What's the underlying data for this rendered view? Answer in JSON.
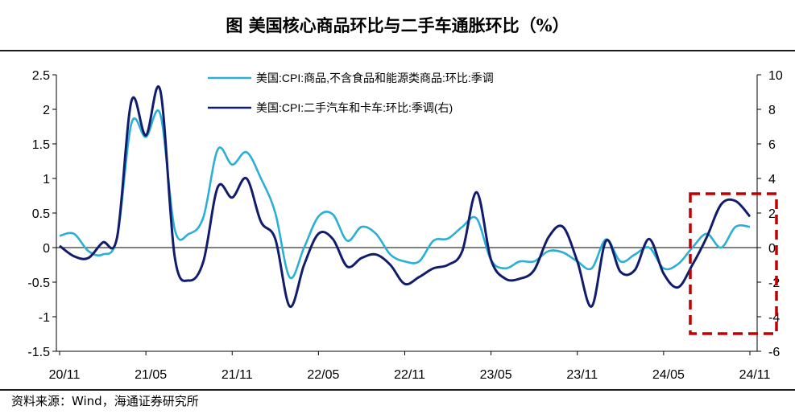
{
  "title": "图  美国核心商品环比与二手车通胀环比（%）",
  "source": "资料来源：Wind，海通证券研究所",
  "chart_data": {
    "type": "line",
    "title": "图  美国核心商品环比与二手车通胀环比（%）",
    "x_ticks": [
      "20/11",
      "21/05",
      "21/11",
      "22/05",
      "22/11",
      "23/05",
      "23/11",
      "24/05",
      "24/11"
    ],
    "y_left": {
      "ylim": [
        -1.5,
        2.5
      ],
      "ticks": [
        "2.5",
        "2",
        "1.5",
        "1",
        "0.5",
        "0",
        "-0.5",
        "-1",
        "-1.5"
      ]
    },
    "y_right": {
      "ylim": [
        -6,
        10
      ],
      "ticks": [
        "10",
        "8",
        "6",
        "4",
        "2",
        "0",
        "-2",
        "-4",
        "-6"
      ]
    },
    "grid": false,
    "legend_position": "top-center",
    "series": [
      {
        "name": "美国:CPI:商品,不含食品和能源类商品:环比:季调",
        "axis": "left",
        "color": "#2bafd6",
        "x": [
          "2020-11",
          "2020-12",
          "2021-01",
          "2021-02",
          "2021-03",
          "2021-04",
          "2021-05",
          "2021-06",
          "2021-07",
          "2021-08",
          "2021-09",
          "2021-10",
          "2021-11",
          "2021-12",
          "2022-01",
          "2022-02",
          "2022-03",
          "2022-04",
          "2022-05",
          "2022-06",
          "2022-07",
          "2022-08",
          "2022-09",
          "2022-10",
          "2022-11",
          "2022-12",
          "2023-01",
          "2023-02",
          "2023-03",
          "2023-04",
          "2023-05",
          "2023-06",
          "2023-07",
          "2023-08",
          "2023-09",
          "2023-10",
          "2023-11",
          "2023-12",
          "2024-01",
          "2024-02",
          "2024-03",
          "2024-04",
          "2024-05",
          "2024-06",
          "2024-07",
          "2024-08",
          "2024-09",
          "2024-10",
          "2024-11"
        ],
        "values": [
          0.17,
          0.2,
          -0.05,
          -0.1,
          0.15,
          1.8,
          1.6,
          1.93,
          0.27,
          0.2,
          0.44,
          1.42,
          1.2,
          1.38,
          1.0,
          0.5,
          -0.43,
          0.0,
          0.45,
          0.48,
          0.1,
          0.3,
          0.2,
          -0.1,
          -0.2,
          -0.2,
          0.1,
          0.13,
          0.3,
          0.42,
          -0.18,
          -0.3,
          -0.2,
          -0.2,
          -0.05,
          -0.07,
          -0.2,
          -0.3,
          0.12,
          -0.2,
          -0.1,
          0.0,
          -0.3,
          -0.24,
          0.0,
          0.2,
          0.0,
          0.3,
          0.3
        ]
      },
      {
        "name": "美国:CPI:二手汽车和卡车:环比:季调(右)",
        "axis": "right",
        "color": "#111d6c",
        "x": [
          "2020-11",
          "2020-12",
          "2021-01",
          "2021-02",
          "2021-03",
          "2021-04",
          "2021-05",
          "2021-06",
          "2021-07",
          "2021-08",
          "2021-09",
          "2021-10",
          "2021-11",
          "2021-12",
          "2022-01",
          "2022-02",
          "2022-03",
          "2022-04",
          "2022-05",
          "2022-06",
          "2022-07",
          "2022-08",
          "2022-09",
          "2022-10",
          "2022-11",
          "2022-12",
          "2023-01",
          "2023-02",
          "2023-03",
          "2023-04",
          "2023-05",
          "2023-06",
          "2023-07",
          "2023-08",
          "2023-09",
          "2023-10",
          "2023-11",
          "2023-12",
          "2024-01",
          "2024-02",
          "2024-03",
          "2024-04",
          "2024-05",
          "2024-06",
          "2024-07",
          "2024-08",
          "2024-09",
          "2024-10",
          "2024-11"
        ],
        "values": [
          0.1,
          -0.5,
          -0.6,
          0.3,
          0.6,
          8.5,
          6.5,
          9.1,
          -0.5,
          -1.9,
          -0.8,
          3.5,
          2.9,
          4.0,
          1.5,
          0.5,
          -3.4,
          -1.0,
          0.8,
          0.5,
          -1.1,
          -0.6,
          -0.4,
          -1.0,
          -2.1,
          -1.7,
          -1.2,
          -1.0,
          -0.2,
          3.2,
          -0.7,
          -1.8,
          -1.8,
          -1.3,
          0.6,
          1.2,
          -0.8,
          -3.4,
          0.4,
          -1.4,
          -1.3,
          0.5,
          -1.5,
          -2.3,
          -1.0,
          0.6,
          2.5,
          2.7,
          1.8
        ]
      }
    ],
    "annotation": {
      "type": "dashed-box",
      "color": "#c00000",
      "x_start": "2024-06",
      "x_end": "2024-11"
    }
  }
}
